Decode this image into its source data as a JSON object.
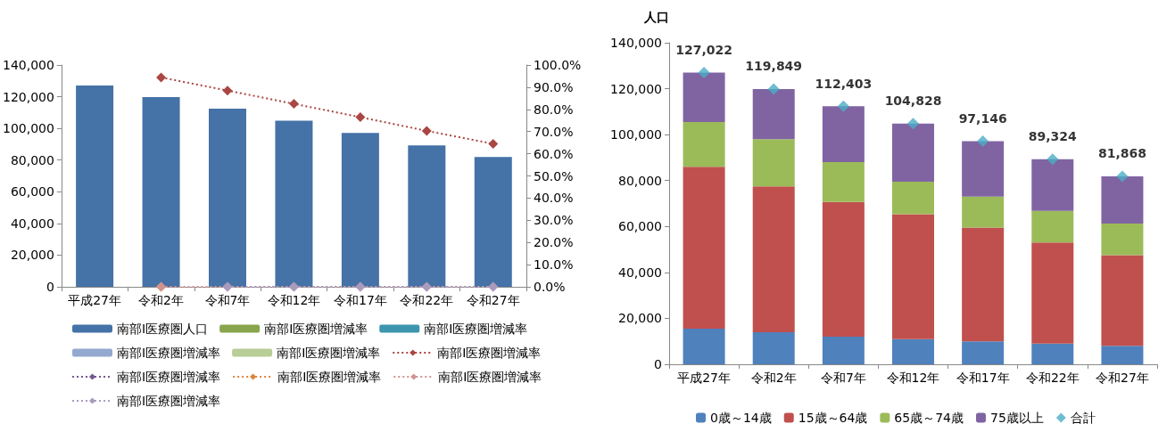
{
  "chart_data": [
    {
      "type": "bar",
      "categories": [
        "平成27年",
        "令和2年",
        "令和7年",
        "令和12年",
        "令和17年",
        "令和22年",
        "令和27年"
      ],
      "ylim": [
        0,
        140000
      ],
      "yticks": [
        0,
        {
          "value": 20000,
          "label": "20,000"
        },
        {
          "value": 40000,
          "label": "40,000"
        },
        {
          "value": 60000,
          "label": "60,000"
        },
        {
          "value": 80000,
          "label": "80,000"
        },
        {
          "value": 100000,
          "label": "100,000"
        },
        {
          "value": 120000,
          "label": "120,000"
        },
        {
          "value": 140000,
          "label": "140,000"
        }
      ],
      "y2lim": [
        0,
        100
      ],
      "y2ticks": [
        {
          "value": 0,
          "label": "0.0%"
        },
        {
          "value": 10,
          "label": "10.0%"
        },
        {
          "value": 20,
          "label": "20.0%"
        },
        {
          "value": 30,
          "label": "30.0%"
        },
        {
          "value": 40,
          "label": "40.0%"
        },
        {
          "value": 50,
          "label": "50.0%"
        },
        {
          "value": 60,
          "label": "60.0%"
        },
        {
          "value": 70,
          "label": "70.0%"
        },
        {
          "value": 80,
          "label": "80.0%"
        },
        {
          "value": 90,
          "label": "90.0%"
        },
        {
          "value": 100,
          "label": "100.0%"
        }
      ],
      "marker": "diamond",
      "line_style": "dotted",
      "legend": "bottom",
      "series": [
        {
          "name": "南部Ⅰ医療圏人口",
          "color": "#4572a7",
          "values": [
            127000,
            119800,
            112400,
            104800,
            97100,
            89300,
            81900
          ]
        },
        {
          "name": "南部Ⅰ医療圏増減率",
          "color": "#89a54e",
          "values": [
            null,
            null,
            null,
            null,
            null,
            null,
            null
          ]
        },
        {
          "name": "南部Ⅰ医療圏増減率",
          "color": "#3d96ae",
          "values": [
            null,
            null,
            null,
            null,
            null,
            null,
            null
          ]
        },
        {
          "name": "南部Ⅰ医療圏増減率",
          "color": "#93a9cf",
          "values": [
            null,
            null,
            null,
            null,
            null,
            null,
            null
          ]
        },
        {
          "name": "南部Ⅰ医療圏増減率",
          "color": "#b9cd96",
          "values": [
            null,
            null,
            null,
            null,
            null,
            null,
            null
          ]
        },
        {
          "name": "南部Ⅰ医療圏増減率",
          "type": "line",
          "axis": "y2",
          "color": "#aa4643",
          "values": [
            null,
            94.4,
            88.5,
            82.5,
            76.5,
            70.3,
            64.5
          ]
        },
        {
          "name": "南部Ⅰ医療圏増減率",
          "type": "line",
          "axis": "y2",
          "color": "#71588f",
          "values": [
            null,
            null,
            null,
            null,
            null,
            null,
            null
          ]
        },
        {
          "name": "南部Ⅰ医療圏増減率",
          "type": "line",
          "axis": "y2",
          "color": "#db843d",
          "values": [
            null,
            0,
            null,
            null,
            null,
            null,
            null
          ]
        },
        {
          "name": "南部Ⅰ医療圏増減率",
          "type": "line",
          "axis": "y2",
          "color": "#d19392",
          "values": [
            null,
            0,
            0,
            0,
            0,
            0,
            0
          ]
        },
        {
          "name": "南部Ⅰ医療圏増減率",
          "type": "line",
          "axis": "y2",
          "color": "#a99bbd",
          "values": [
            null,
            null,
            0,
            0,
            0,
            0,
            0
          ]
        }
      ]
    },
    {
      "type": "bar",
      "stacked": true,
      "ylabel": "人口",
      "categories": [
        "平成27年",
        "令和2年",
        "令和7年",
        "令和12年",
        "令和17年",
        "令和22年",
        "令和27年"
      ],
      "ylim": [
        0,
        140000
      ],
      "yticks": [
        0,
        {
          "value": 20000,
          "label": "20,000"
        },
        {
          "value": 40000,
          "label": "40,000"
        },
        {
          "value": 60000,
          "label": "60,000"
        },
        {
          "value": 80000,
          "label": "80,000"
        },
        {
          "value": 100000,
          "label": "100,000"
        },
        {
          "value": 120000,
          "label": "120,000"
        },
        {
          "value": 140000,
          "label": "140,000"
        }
      ],
      "marker": "diamond",
      "legend": "bottom",
      "series": [
        {
          "name": "0歳～14歳",
          "color": "#4f81bd",
          "values": [
            15500,
            14000,
            12000,
            11000,
            10000,
            9000,
            8000
          ]
        },
        {
          "name": "15歳～64歳",
          "color": "#c0504d",
          "values": [
            70500,
            63500,
            58700,
            54300,
            49500,
            44000,
            39500
          ]
        },
        {
          "name": "65歳～74歳",
          "color": "#9bbb59",
          "values": [
            19500,
            20500,
            17300,
            14200,
            13500,
            13800,
            13800
          ]
        },
        {
          "name": "75歳以上",
          "color": "#8064a2",
          "values": [
            21500,
            21800,
            24400,
            25300,
            24100,
            22500,
            20500
          ]
        },
        {
          "name": "合計",
          "type": "scatter",
          "color": "#4bacc6",
          "x": [
            "平成27年",
            "令和2年",
            "令和7年",
            "令和12年",
            "令和17年",
            "令和22年",
            "令和27年"
          ],
          "values": [
            127022,
            119849,
            112403,
            104828,
            97146,
            89324,
            81868
          ],
          "value_labels": [
            "127,022",
            "119,849",
            "112,403",
            "104,828",
            "97,146",
            "89,324",
            "81,868"
          ]
        }
      ]
    }
  ]
}
